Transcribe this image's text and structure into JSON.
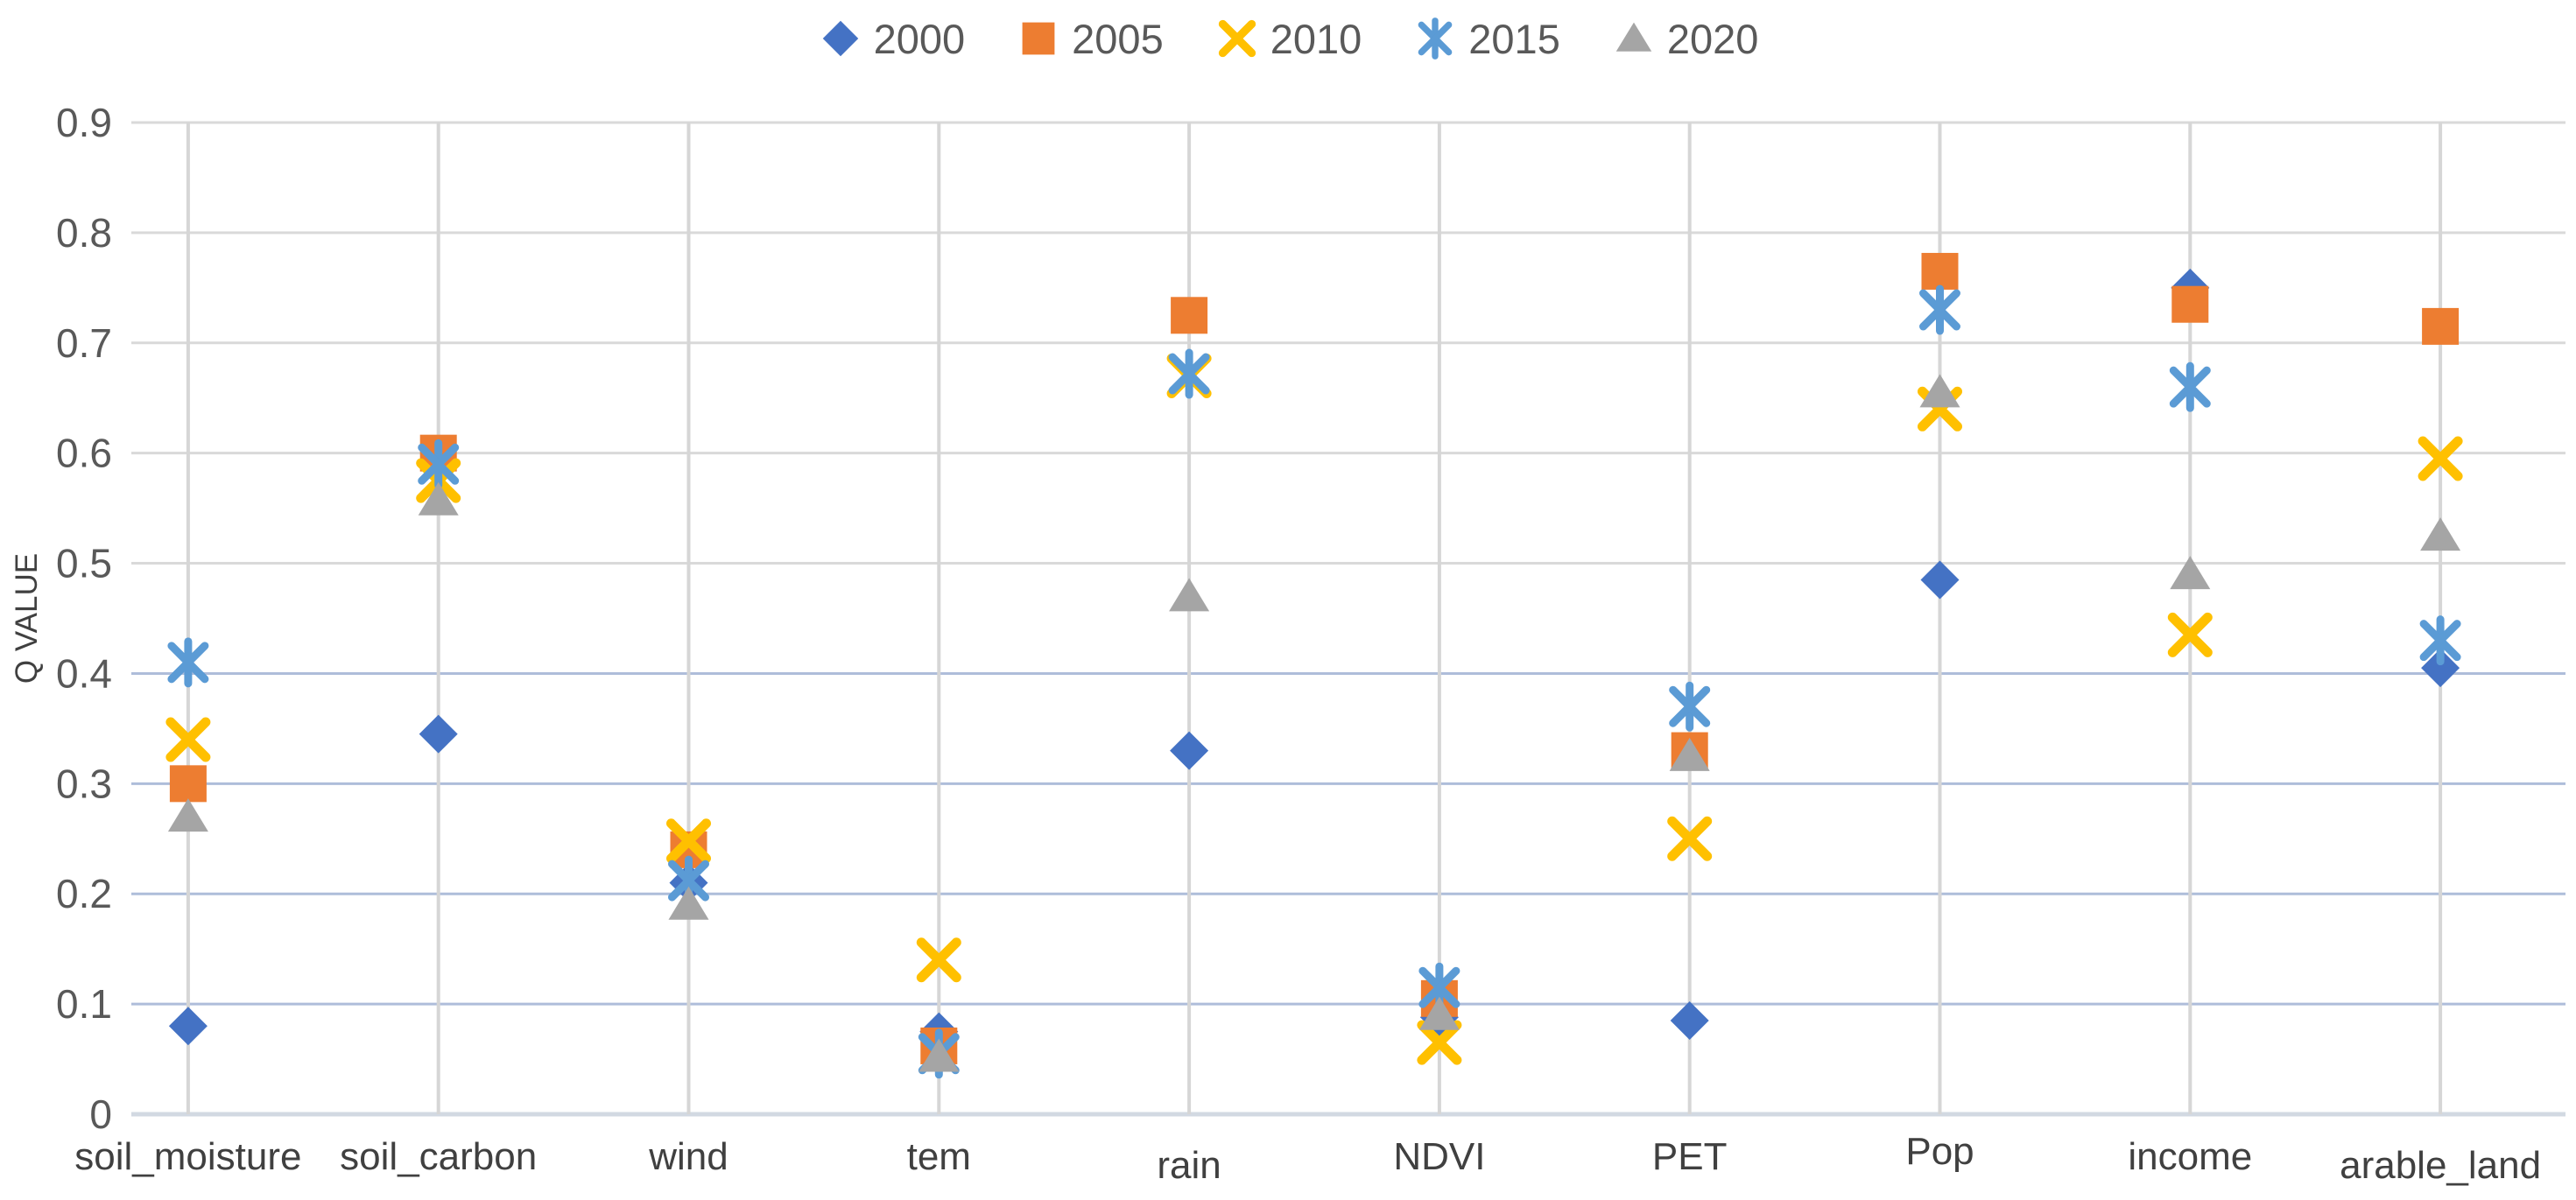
{
  "chart_data": {
    "type": "scatter",
    "title": "",
    "ylabel": "Q VALUE",
    "xlabel": "",
    "ylim": [
      0,
      0.9
    ],
    "ytick_step": 0.1,
    "ytick_labels": [
      "0",
      "0.1",
      "0.2",
      "0.3",
      "0.4",
      "0.5",
      "0.6",
      "0.7",
      "0.8",
      "0.9"
    ],
    "grid": "horizontal gridlines at every 0.1 plus one vertical gridline per category",
    "legend_position": "top-center",
    "categories": [
      "soil_moisture",
      "soil_carbon",
      "wind",
      "tem",
      "rain",
      "NDVI",
      "PET",
      "Pop",
      "income",
      "arable_land"
    ],
    "series": [
      {
        "name": "2000",
        "marker": "diamond-icon",
        "color": "#4472C4",
        "values": [
          0.08,
          0.345,
          0.21,
          0.075,
          0.33,
          0.088,
          0.085,
          0.485,
          0.75,
          0.405
        ]
      },
      {
        "name": "2005",
        "marker": "square-icon",
        "color": "#ED7D31",
        "values": [
          0.3,
          0.6,
          0.24,
          0.062,
          0.725,
          0.105,
          0.33,
          0.765,
          0.735,
          0.715
        ]
      },
      {
        "name": "2010",
        "marker": "x-icon",
        "color": "#FFC000",
        "values": [
          0.34,
          0.575,
          0.248,
          0.14,
          0.67,
          0.065,
          0.25,
          0.64,
          0.435,
          0.595
        ]
      },
      {
        "name": "2015",
        "marker": "asterisk-icon",
        "color": "#5B9BD5",
        "values": [
          0.41,
          0.59,
          0.212,
          0.055,
          0.672,
          0.115,
          0.37,
          0.73,
          0.66,
          0.43
        ]
      },
      {
        "name": "2020",
        "marker": "triangle-icon",
        "color": "#A5A5A5",
        "values": [
          0.27,
          0.557,
          0.19,
          0.052,
          0.47,
          0.09,
          0.325,
          0.655,
          0.49,
          0.525
        ]
      }
    ]
  },
  "colors": {
    "text": "#595959",
    "category_text": "#404040",
    "grid_h_low": "#aebdda",
    "grid_h_high": "#d9d9d9",
    "grid_v": "#d6d6d6",
    "axis_line": "#d2d9e2"
  }
}
